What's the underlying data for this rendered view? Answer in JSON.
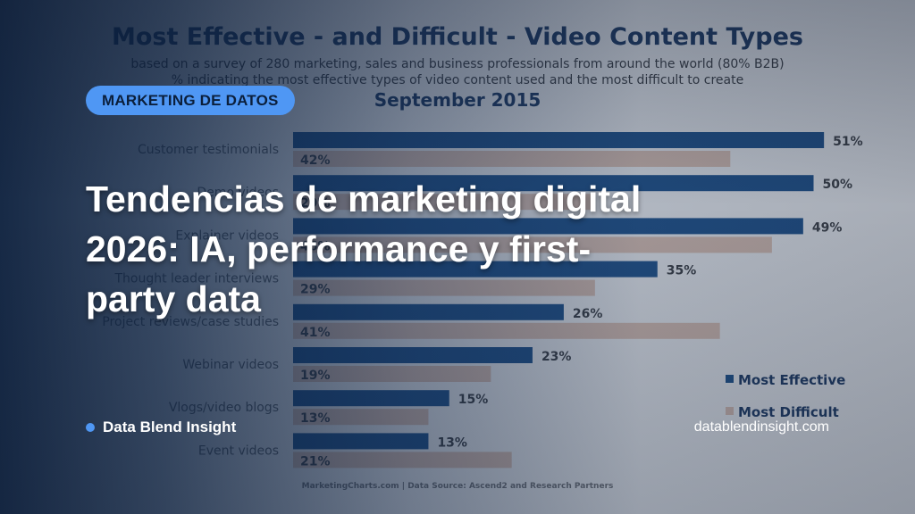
{
  "overlay": {
    "badge": "MARKETING DE DATOS",
    "headline": "Tendencias de marketing digital 2026: IA, performance y first-party data",
    "brand": "Data Blend Insight",
    "website": "datablendinsight.com",
    "accent_color": "#4f97f4"
  },
  "chart_data": {
    "type": "bar",
    "orientation": "horizontal",
    "title": "Most Effective - and Difficult - Video Content Types",
    "subtitle": [
      "based on a survey of 280 marketing, sales and business professionals from around the world (80% B2B)",
      "% indicating the most effective types of video content used and the most difficult to create"
    ],
    "date": "September 2015",
    "categories": [
      "Customer testimonials",
      "Demo videos",
      "Explainer videos",
      "Thought leader interviews",
      "Project reviews/case studies",
      "Webinar videos",
      "Vlogs/video blogs",
      "Event videos"
    ],
    "series": [
      {
        "name": "Most Effective",
        "values": [
          51,
          50,
          49,
          35,
          26,
          23,
          15,
          13
        ],
        "color": "#1f4f86"
      },
      {
        "name": "Most Difficult",
        "values": [
          42,
          29,
          46,
          29,
          41,
          19,
          13,
          21
        ],
        "color": "#c8b3ab"
      }
    ],
    "unit": "%",
    "legend_position": "right",
    "source": "MarketingCharts.com | Data Source: Ascend2 and Research Partners"
  }
}
